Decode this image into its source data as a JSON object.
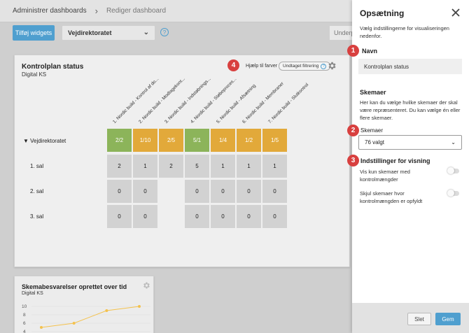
{
  "breadcrumb": {
    "root": "Administrer dashboards",
    "current": "Rediger dashboard",
    "separator": "›"
  },
  "toolbar": {
    "add_widgets": "Tilføj widgets",
    "dashboard_select": "Vejdirektoratet",
    "help": "?",
    "underp": "Underp"
  },
  "widget_status": {
    "title": "Kontrolplan status",
    "subtitle": "Digital KS",
    "help_colors": "Hjælp til farver",
    "filter": "Undtaget filtrering",
    "filter_help": "?",
    "columns": [
      "1. Nordic build - Kontrol af do...",
      "2. Nordic build - Modtagekont...",
      "3. Nordic build - Indstøbnings...",
      "4. Nordic build - Støbeproces...",
      "5. Nordic build - Afsætning",
      "6. Nordic build - Membraner",
      "7. Nordic build - Slutkontrol"
    ],
    "group_label": "▼ Vejdirektoratet",
    "group_cells": [
      "2/2",
      "1/10",
      "2/5",
      "5/1",
      "1/4",
      "1/2",
      "1/5"
    ],
    "rows": [
      {
        "label": "1. sal",
        "cells": [
          "2",
          "1",
          "2",
          "5",
          "1",
          "1",
          "1"
        ]
      },
      {
        "label": "2. sal",
        "cells": [
          "0",
          "0",
          "",
          "0",
          "0",
          "0",
          "0"
        ]
      },
      {
        "label": "3. sal",
        "cells": [
          "0",
          "0",
          "",
          "0",
          "0",
          "0",
          "0"
        ]
      }
    ]
  },
  "widget_chart": {
    "title": "Skemabesvarelser oprettet over tid",
    "subtitle": "Digital KS",
    "yticks": [
      "10",
      "8",
      "6",
      "4"
    ],
    "chart_data": {
      "type": "line",
      "x": [
        1,
        2,
        3,
        4
      ],
      "values": [
        5,
        6,
        9,
        10
      ],
      "ylim": [
        4,
        10
      ],
      "color": "#f4c24e"
    }
  },
  "panel": {
    "title": "Opsætning",
    "intro": "Vælg indstillingerne for visualiseringen nedenfor.",
    "name_label": "Navn",
    "name_value": "Kontrolplan status",
    "schemas_heading": "Skemaer",
    "schemas_desc": "Her kan du vælge hvilke skemaer der skal være repræsenteret. Du kan vælge én eller flere skemaer.",
    "schemas_label": "Skemaer",
    "schemas_value": "76 valgt",
    "settings_heading": "Indstillinger for visning",
    "toggle1": "Vis kun skemaer med kontrolmængder",
    "toggle2": "Skjul skemaer hvor kontrolmængden er opfyldt",
    "delete": "Slet",
    "save": "Gem"
  },
  "badges": [
    "1",
    "2",
    "3",
    "4"
  ],
  "colors": {
    "accent": "#4f9fcf",
    "badge": "#d8403f",
    "green": "#8cb45a",
    "orange": "#e2a93a"
  }
}
